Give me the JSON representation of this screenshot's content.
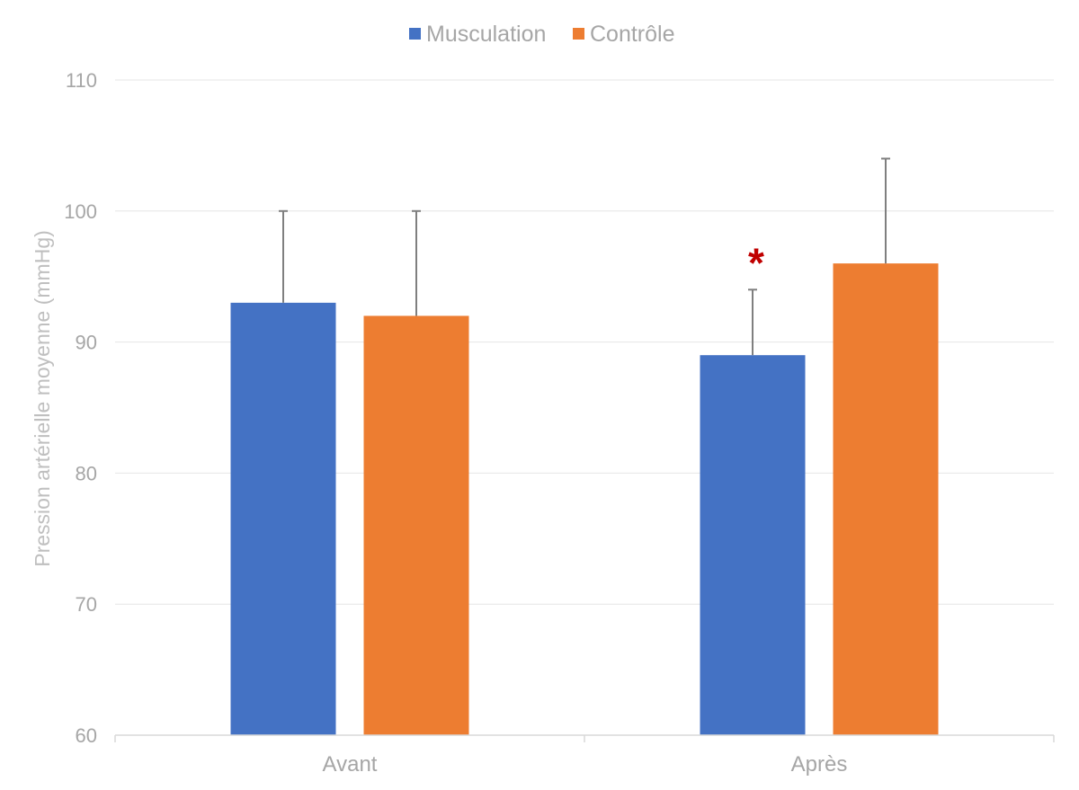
{
  "chart_data": {
    "type": "bar",
    "title": "",
    "xlabel": "",
    "ylabel": "Pression artérielle moyenne (mmHg)",
    "ylim": [
      60,
      110
    ],
    "yticks": [
      60,
      70,
      80,
      90,
      100,
      110
    ],
    "categories": [
      "Avant",
      "Après"
    ],
    "series": [
      {
        "name": "Musculation",
        "color": "#4472C4",
        "values": [
          93,
          89
        ],
        "error_upper": [
          7,
          5
        ]
      },
      {
        "name": "Contrôle",
        "color": "#ED7D31",
        "values": [
          92,
          96
        ],
        "error_upper": [
          8,
          8
        ]
      }
    ],
    "grid": true,
    "legend": "top-center",
    "annotations": [
      {
        "text": "*",
        "category": "Après",
        "series": "Musculation",
        "y": 97,
        "color": "#C00000"
      }
    ]
  }
}
